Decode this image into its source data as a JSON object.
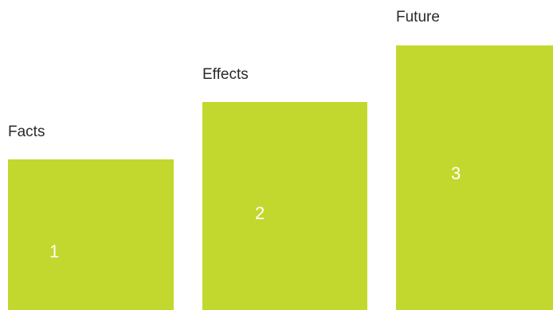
{
  "colors": {
    "block": "#c2d82e",
    "label_text": "#2a2a2a",
    "number_text": "#ffffff"
  },
  "steps": [
    {
      "label": "Facts",
      "number": "1"
    },
    {
      "label": "Effects",
      "number": "2"
    },
    {
      "label": "Future",
      "number": "3"
    }
  ]
}
